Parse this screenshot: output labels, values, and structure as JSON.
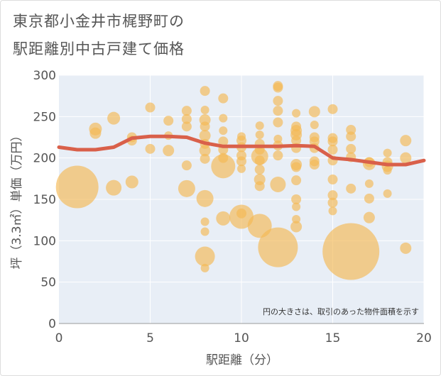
{
  "chart_data": {
    "type": "scatter",
    "title_line1": "東京都小金井市梶野町の",
    "title_line2": "駅距離別中古戸建て価格",
    "xlabel": "駅距離（分）",
    "ylabel": "坪（3.3㎡）単価（万円）",
    "note": "円の大きさは、取引のあった物件面積を示す",
    "xlim": [
      0,
      20
    ],
    "ylim": [
      0,
      300
    ],
    "x_ticks": [
      "0",
      "5",
      "10",
      "15",
      "20"
    ],
    "y_ticks": [
      "0",
      "50",
      "100",
      "150",
      "200",
      "250",
      "300"
    ],
    "bubble_color": "#f5b953",
    "line_color": "#d9604a",
    "bubbles": [
      {
        "x": 1,
        "y": 165,
        "r": 30
      },
      {
        "x": 2,
        "y": 235,
        "r": 9
      },
      {
        "x": 2,
        "y": 230,
        "r": 8
      },
      {
        "x": 3,
        "y": 248,
        "r": 9
      },
      {
        "x": 3,
        "y": 164,
        "r": 11
      },
      {
        "x": 4,
        "y": 225,
        "r": 7
      },
      {
        "x": 4,
        "y": 221,
        "r": 7
      },
      {
        "x": 4,
        "y": 171,
        "r": 9
      },
      {
        "x": 5,
        "y": 261,
        "r": 7
      },
      {
        "x": 5,
        "y": 211,
        "r": 7
      },
      {
        "x": 6,
        "y": 245,
        "r": 7
      },
      {
        "x": 6,
        "y": 227,
        "r": 6
      },
      {
        "x": 6,
        "y": 209,
        "r": 8
      },
      {
        "x": 7,
        "y": 257,
        "r": 7
      },
      {
        "x": 7,
        "y": 247,
        "r": 7
      },
      {
        "x": 7,
        "y": 238,
        "r": 7
      },
      {
        "x": 7,
        "y": 191,
        "r": 7
      },
      {
        "x": 7,
        "y": 163,
        "r": 12
      },
      {
        "x": 8,
        "y": 281,
        "r": 7
      },
      {
        "x": 8,
        "y": 258,
        "r": 6
      },
      {
        "x": 8,
        "y": 246,
        "r": 8
      },
      {
        "x": 8,
        "y": 238,
        "r": 7
      },
      {
        "x": 8,
        "y": 227,
        "r": 8
      },
      {
        "x": 8,
        "y": 217,
        "r": 7
      },
      {
        "x": 8,
        "y": 209,
        "r": 8
      },
      {
        "x": 8,
        "y": 199,
        "r": 7
      },
      {
        "x": 8,
        "y": 151,
        "r": 12
      },
      {
        "x": 8,
        "y": 123,
        "r": 6
      },
      {
        "x": 8,
        "y": 111,
        "r": 6
      },
      {
        "x": 8,
        "y": 81,
        "r": 14
      },
      {
        "x": 8,
        "y": 67,
        "r": 6
      },
      {
        "x": 9,
        "y": 272,
        "r": 7
      },
      {
        "x": 9,
        "y": 248,
        "r": 6
      },
      {
        "x": 9,
        "y": 233,
        "r": 6
      },
      {
        "x": 9,
        "y": 220,
        "r": 7
      },
      {
        "x": 9,
        "y": 210,
        "r": 7
      },
      {
        "x": 9,
        "y": 200,
        "r": 7
      },
      {
        "x": 9,
        "y": 190,
        "r": 17
      },
      {
        "x": 9,
        "y": 127,
        "r": 10
      },
      {
        "x": 10,
        "y": 226,
        "r": 6
      },
      {
        "x": 10,
        "y": 221,
        "r": 7
      },
      {
        "x": 10,
        "y": 213,
        "r": 7
      },
      {
        "x": 10,
        "y": 203,
        "r": 7
      },
      {
        "x": 10,
        "y": 196,
        "r": 7
      },
      {
        "x": 10,
        "y": 187,
        "r": 6
      },
      {
        "x": 10,
        "y": 133,
        "r": 7
      },
      {
        "x": 10,
        "y": 129,
        "r": 17
      },
      {
        "x": 11,
        "y": 239,
        "r": 6
      },
      {
        "x": 11,
        "y": 228,
        "r": 6
      },
      {
        "x": 11,
        "y": 217,
        "r": 7
      },
      {
        "x": 11,
        "y": 210,
        "r": 7
      },
      {
        "x": 11,
        "y": 202,
        "r": 12
      },
      {
        "x": 11,
        "y": 197,
        "r": 7
      },
      {
        "x": 11,
        "y": 186,
        "r": 7
      },
      {
        "x": 11,
        "y": 174,
        "r": 8
      },
      {
        "x": 11,
        "y": 166,
        "r": 7
      },
      {
        "x": 11,
        "y": 118,
        "r": 17
      },
      {
        "x": 12,
        "y": 287,
        "r": 7
      },
      {
        "x": 12,
        "y": 285,
        "r": 7
      },
      {
        "x": 12,
        "y": 269,
        "r": 7
      },
      {
        "x": 12,
        "y": 257,
        "r": 7
      },
      {
        "x": 12,
        "y": 243,
        "r": 7
      },
      {
        "x": 12,
        "y": 223,
        "r": 6
      },
      {
        "x": 12,
        "y": 215,
        "r": 7
      },
      {
        "x": 12,
        "y": 203,
        "r": 7
      },
      {
        "x": 12,
        "y": 168,
        "r": 11
      },
      {
        "x": 12,
        "y": 92,
        "r": 28
      },
      {
        "x": 13,
        "y": 254,
        "r": 6
      },
      {
        "x": 13,
        "y": 238,
        "r": 7
      },
      {
        "x": 13,
        "y": 233,
        "r": 8
      },
      {
        "x": 13,
        "y": 228,
        "r": 8
      },
      {
        "x": 13,
        "y": 221,
        "r": 7
      },
      {
        "x": 13,
        "y": 212,
        "r": 7
      },
      {
        "x": 13,
        "y": 192,
        "r": 8
      },
      {
        "x": 13,
        "y": 189,
        "r": 7
      },
      {
        "x": 13,
        "y": 173,
        "r": 7
      },
      {
        "x": 13,
        "y": 150,
        "r": 7
      },
      {
        "x": 13,
        "y": 141,
        "r": 6
      },
      {
        "x": 13,
        "y": 126,
        "r": 6
      },
      {
        "x": 13,
        "y": 117,
        "r": 8
      },
      {
        "x": 14,
        "y": 256,
        "r": 8
      },
      {
        "x": 14,
        "y": 240,
        "r": 6
      },
      {
        "x": 14,
        "y": 225,
        "r": 7
      },
      {
        "x": 14,
        "y": 220,
        "r": 7
      },
      {
        "x": 14,
        "y": 212,
        "r": 7
      },
      {
        "x": 14,
        "y": 196,
        "r": 7
      },
      {
        "x": 14,
        "y": 192,
        "r": 7
      },
      {
        "x": 15,
        "y": 259,
        "r": 7
      },
      {
        "x": 15,
        "y": 224,
        "r": 7
      },
      {
        "x": 15,
        "y": 220,
        "r": 7
      },
      {
        "x": 15,
        "y": 210,
        "r": 7
      },
      {
        "x": 15,
        "y": 197,
        "r": 7
      },
      {
        "x": 15,
        "y": 174,
        "r": 7
      },
      {
        "x": 15,
        "y": 155,
        "r": 7
      },
      {
        "x": 15,
        "y": 146,
        "r": 7
      },
      {
        "x": 15,
        "y": 136,
        "r": 6
      },
      {
        "x": 16,
        "y": 234,
        "r": 7
      },
      {
        "x": 16,
        "y": 226,
        "r": 7
      },
      {
        "x": 16,
        "y": 211,
        "r": 7
      },
      {
        "x": 16,
        "y": 201,
        "r": 7
      },
      {
        "x": 16,
        "y": 163,
        "r": 7
      },
      {
        "x": 16,
        "y": 87,
        "r": 40
      },
      {
        "x": 17,
        "y": 195,
        "r": 7
      },
      {
        "x": 17,
        "y": 193,
        "r": 9
      },
      {
        "x": 17,
        "y": 169,
        "r": 6
      },
      {
        "x": 17,
        "y": 151,
        "r": 7
      },
      {
        "x": 17,
        "y": 128,
        "r": 8
      },
      {
        "x": 18,
        "y": 206,
        "r": 6
      },
      {
        "x": 18,
        "y": 195,
        "r": 7
      },
      {
        "x": 18,
        "y": 190,
        "r": 8
      },
      {
        "x": 18,
        "y": 185,
        "r": 6
      },
      {
        "x": 18,
        "y": 157,
        "r": 6
      },
      {
        "x": 19,
        "y": 221,
        "r": 8
      },
      {
        "x": 19,
        "y": 200,
        "r": 8
      },
      {
        "x": 19,
        "y": 91,
        "r": 8
      }
    ],
    "trend": [
      {
        "x": 0,
        "y": 213
      },
      {
        "x": 1,
        "y": 210
      },
      {
        "x": 2,
        "y": 210
      },
      {
        "x": 3,
        "y": 213
      },
      {
        "x": 4,
        "y": 224
      },
      {
        "x": 5,
        "y": 226
      },
      {
        "x": 6,
        "y": 226
      },
      {
        "x": 7,
        "y": 225
      },
      {
        "x": 8,
        "y": 218
      },
      {
        "x": 9,
        "y": 214
      },
      {
        "x": 10,
        "y": 214
      },
      {
        "x": 11,
        "y": 214
      },
      {
        "x": 12,
        "y": 214
      },
      {
        "x": 13,
        "y": 215
      },
      {
        "x": 14,
        "y": 214
      },
      {
        "x": 15,
        "y": 200
      },
      {
        "x": 16,
        "y": 198
      },
      {
        "x": 17,
        "y": 195
      },
      {
        "x": 18,
        "y": 192
      },
      {
        "x": 19,
        "y": 192
      },
      {
        "x": 20,
        "y": 197
      }
    ]
  }
}
